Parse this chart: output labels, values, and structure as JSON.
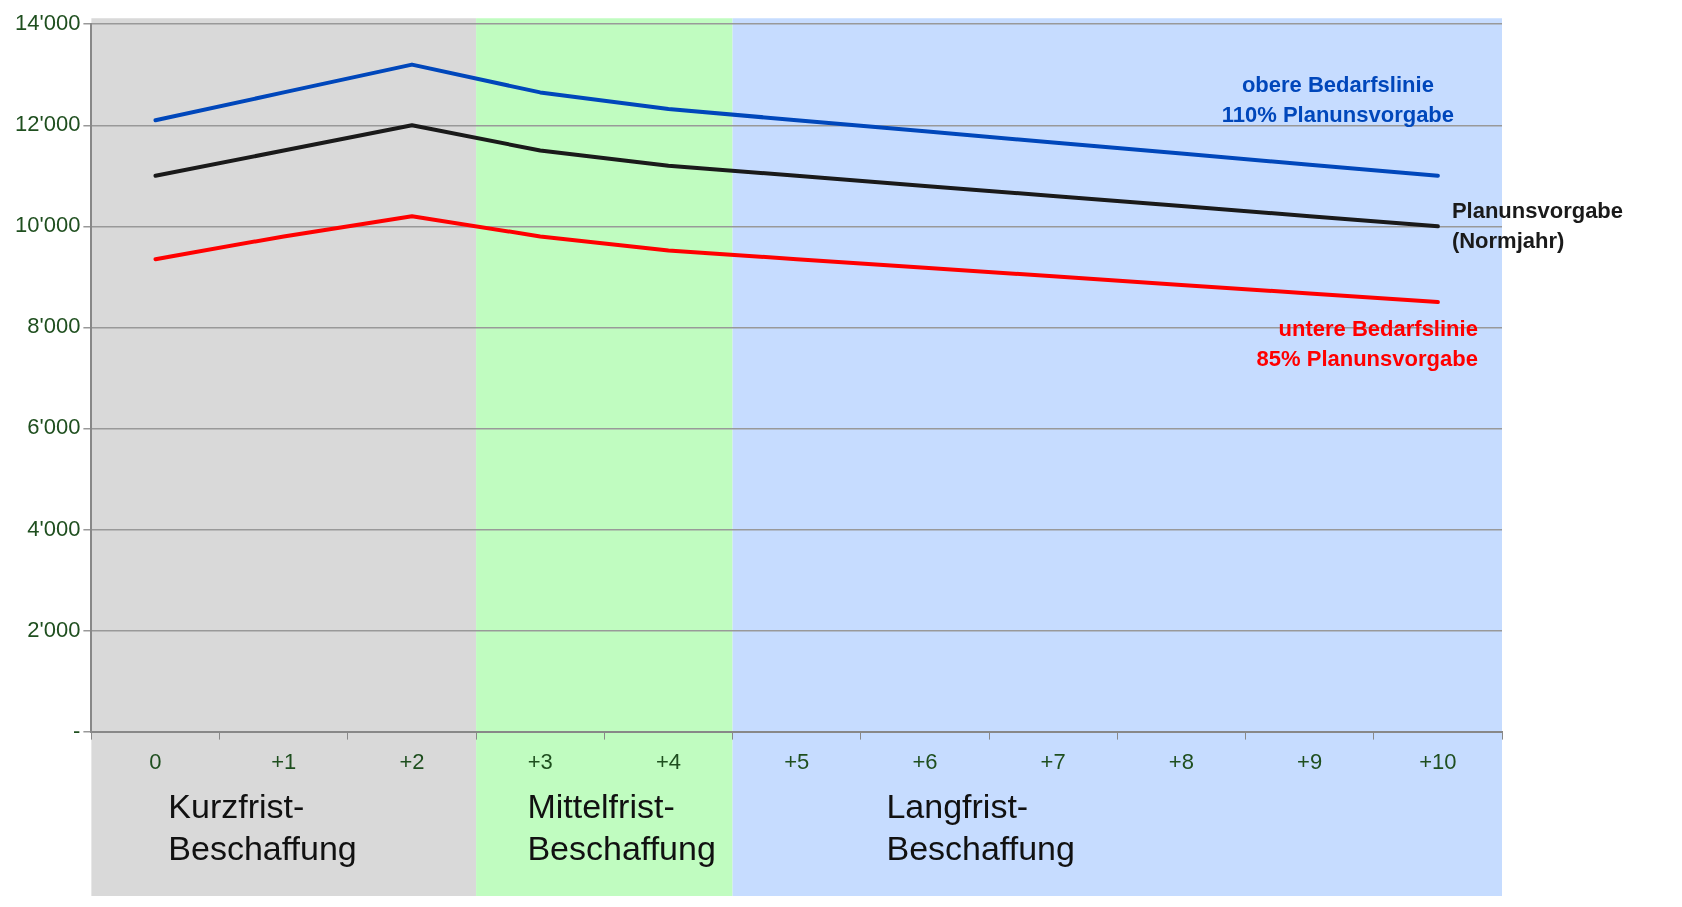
{
  "chart_data": {
    "type": "line",
    "categories": [
      "0",
      "+1",
      "+2",
      "+3",
      "+4",
      "+5",
      "+6",
      "+7",
      "+8",
      "+9",
      "+10"
    ],
    "series": [
      {
        "name": "obere Bedarfslinie\n110% Planunsvorgabe",
        "color": "#0047bb",
        "values": [
          12100,
          12650,
          13200,
          12650,
          12320,
          12100,
          11880,
          11660,
          11440,
          11220,
          11000
        ]
      },
      {
        "name": "Planunsvorgabe\n(Normjahr)",
        "color": "#1a1a1a",
        "values": [
          11000,
          11500,
          12000,
          11500,
          11200,
          11000,
          10800,
          10600,
          10400,
          10200,
          10000
        ]
      },
      {
        "name": "untere Bedarfslinie\n85% Planunsvorgabe",
        "color": "#ff0000",
        "values": [
          9350,
          9800,
          10200,
          9800,
          9520,
          9350,
          9180,
          9010,
          8840,
          8670,
          8500
        ]
      }
    ],
    "ylim": [
      0,
      14000
    ],
    "yticks": [
      {
        "value": 0,
        "label": "-"
      },
      {
        "value": 2000,
        "label": "2'000"
      },
      {
        "value": 4000,
        "label": "4'000"
      },
      {
        "value": 6000,
        "label": "6'000"
      },
      {
        "value": 8000,
        "label": "8'000"
      },
      {
        "value": 10000,
        "label": "10'000"
      },
      {
        "value": 12000,
        "label": "12'000"
      },
      {
        "value": 14000,
        "label": "14'000"
      }
    ],
    "bands": [
      {
        "axis": "x",
        "from": "0",
        "to": "+2",
        "label": "Kurzfrist-\nBeschaffung",
        "color": "#d9d9d9"
      },
      {
        "axis": "x",
        "from": "+3",
        "to": "+4",
        "label": "Mittelfrist-\nBeschaffung",
        "color": "#c0fcc0"
      },
      {
        "axis": "x",
        "from": "+5",
        "to": "+10",
        "label": "Langfrist-\nBeschaffung",
        "color": "#c6dcff"
      }
    ],
    "grid": "y",
    "legend": false,
    "marker": "none",
    "line_style": "solid"
  }
}
